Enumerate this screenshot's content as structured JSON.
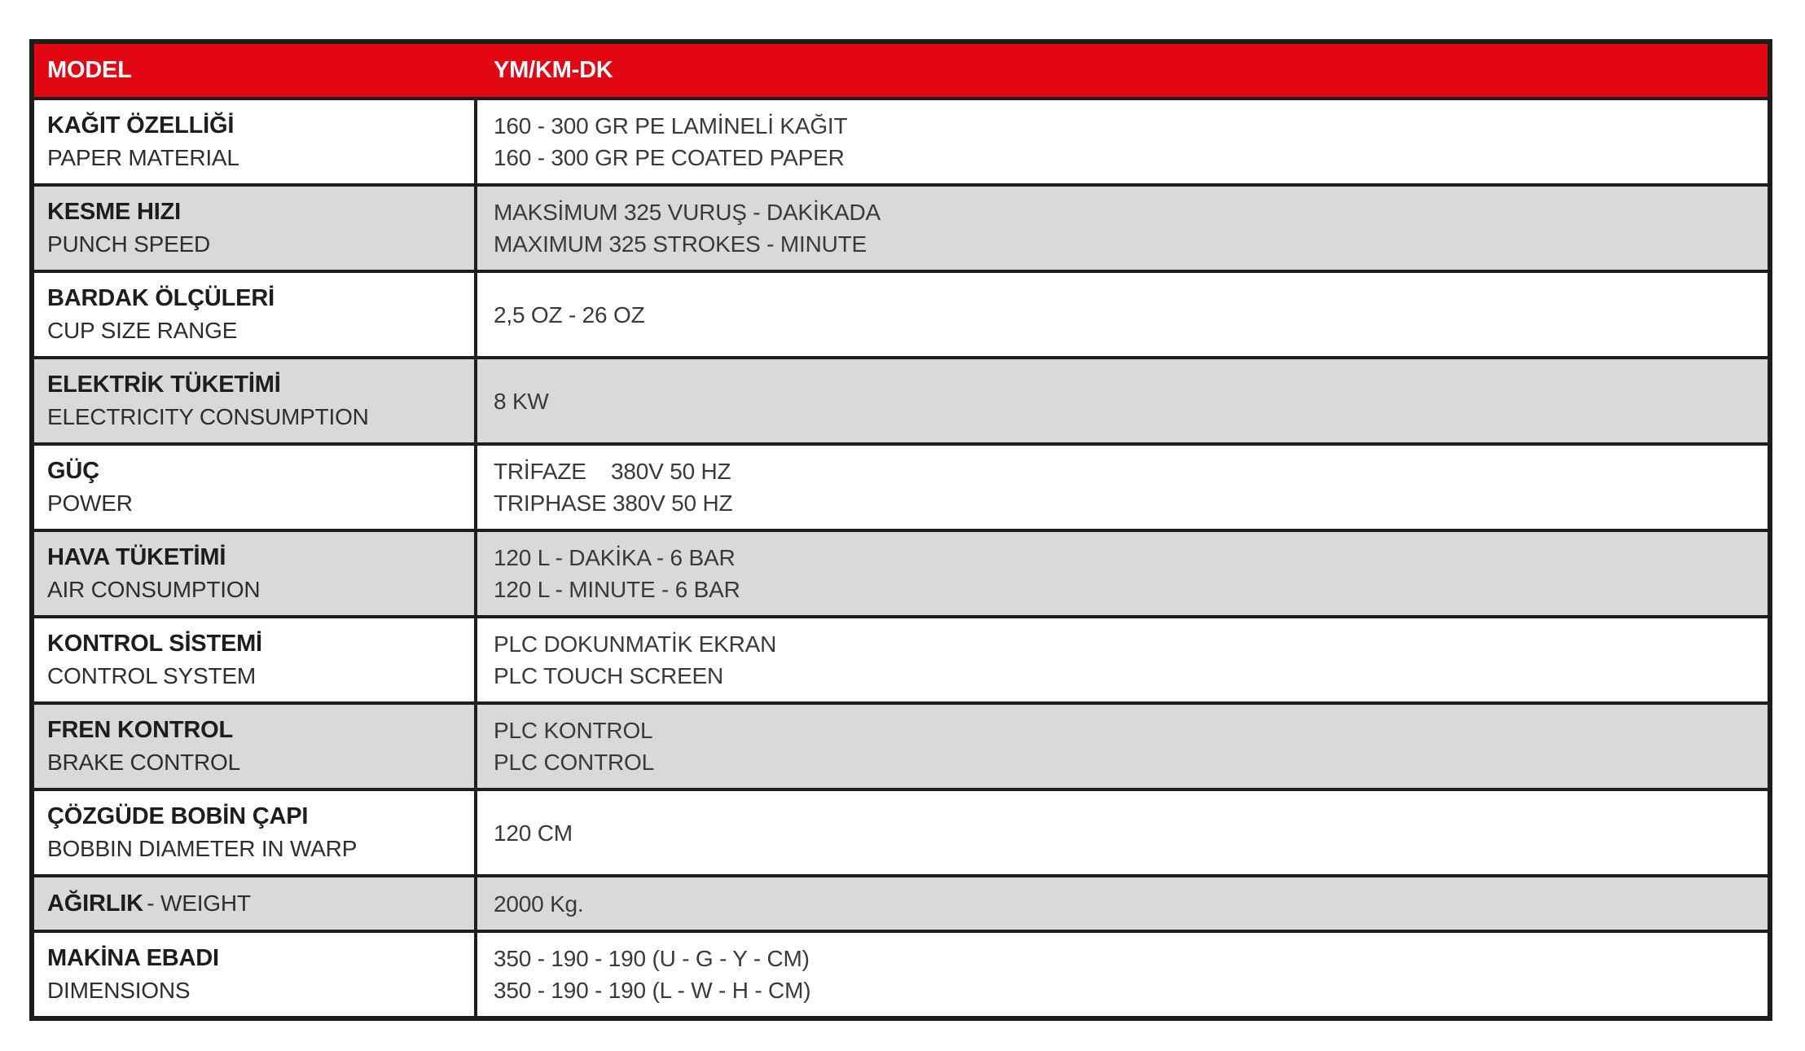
{
  "colors": {
    "header_bg": "#e30613",
    "header_text": "#ffffff",
    "row_alt_bg": "#d9d9d9",
    "border": "#1d1d1b",
    "label_text": "#1d1d1b",
    "value_text": "#3a3a39"
  },
  "header": {
    "model_label": "MODEL",
    "model_value": "YM/KM-DK"
  },
  "rows": [
    {
      "label_tr": "KAĞIT ÖZELLİĞİ",
      "label_en": "PAPER MATERIAL",
      "values": [
        "160 - 300 GR PE LAMİNELİ KAĞIT",
        "160 - 300 GR PE COATED PAPER"
      ]
    },
    {
      "label_tr": "KESME HIZI",
      "label_en": "PUNCH SPEED",
      "values": [
        "MAKSİMUM 325 VURUŞ - DAKİKADA",
        "MAXIMUM 325 STROKES - MINUTE"
      ]
    },
    {
      "label_tr": "BARDAK ÖLÇÜLERİ",
      "label_en": "CUP SIZE RANGE",
      "values": [
        "2,5 OZ - 26 OZ"
      ]
    },
    {
      "label_tr": "ELEKTRİK TÜKETİMİ",
      "label_en": "ELECTRICITY CONSUMPTION",
      "values": [
        "8 KW"
      ]
    },
    {
      "label_tr": "GÜÇ",
      "label_en": "POWER",
      "values": [
        "TRİFAZE    380V 50 HZ",
        "TRIPHASE 380V 50 HZ"
      ]
    },
    {
      "label_tr": "HAVA TÜKETİMİ",
      "label_en": "AIR CONSUMPTION",
      "values": [
        "120 L - DAKİKA - 6 BAR",
        "120 L - MINUTE - 6 BAR"
      ]
    },
    {
      "label_tr": "KONTROL SİSTEMİ",
      "label_en": "CONTROL SYSTEM",
      "values": [
        "PLC DOKUNMATİK EKRAN",
        "PLC TOUCH SCREEN"
      ]
    },
    {
      "label_tr": "FREN KONTROL",
      "label_en": "BRAKE CONTROL",
      "values": [
        "PLC KONTROL",
        "PLC CONTROL"
      ]
    },
    {
      "label_tr": "ÇÖZGÜDE BOBİN ÇAPI",
      "label_en": "BOBBIN DIAMETER IN WARP",
      "values": [
        "120 CM"
      ]
    },
    {
      "label_tr": "AĞIRLIK",
      "label_en": "- WEIGHT",
      "values": [
        "2000 Kg."
      ]
    },
    {
      "label_tr": "MAKİNA EBADI",
      "label_en": "DIMENSIONS",
      "values": [
        "350 - 190 - 190 (U - G - Y - CM)",
        "350 - 190 - 190 (L - W - H - CM)"
      ]
    }
  ]
}
